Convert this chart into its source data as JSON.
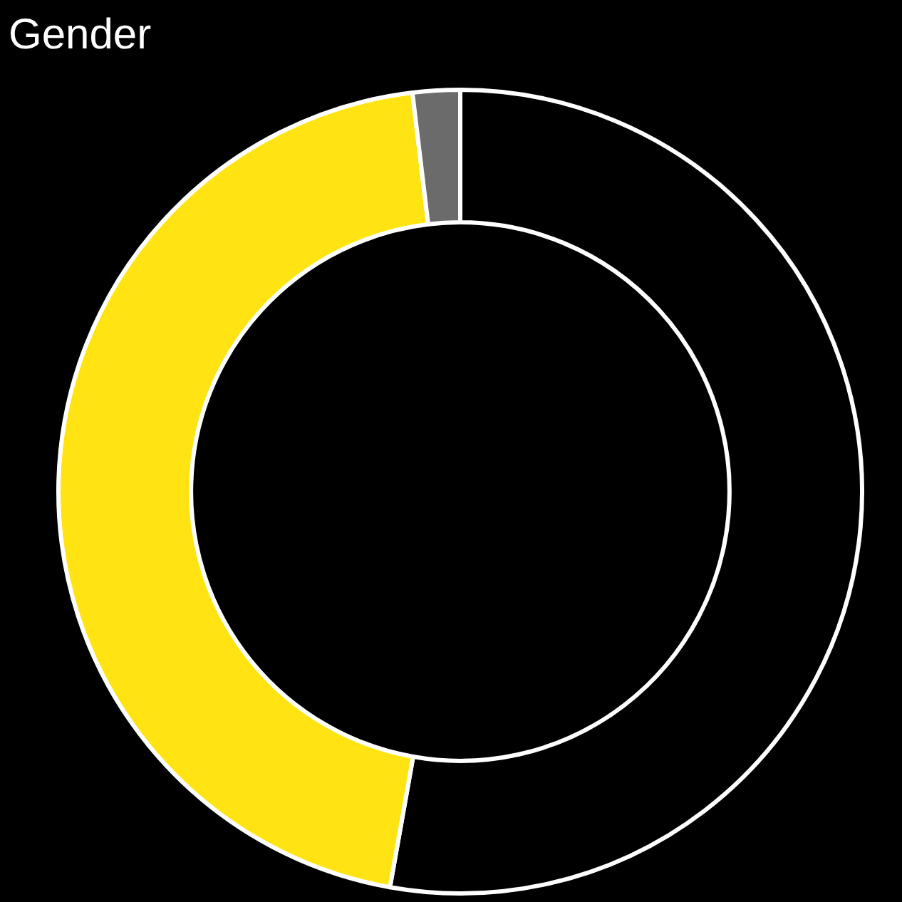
{
  "chart_data": {
    "type": "donut",
    "title": "Gender",
    "categories": [
      null,
      null,
      null
    ],
    "values": [
      52.8,
      45.3,
      1.9
    ],
    "colors": [
      "#000000",
      "#ffe312",
      "#6b6b6b"
    ]
  }
}
